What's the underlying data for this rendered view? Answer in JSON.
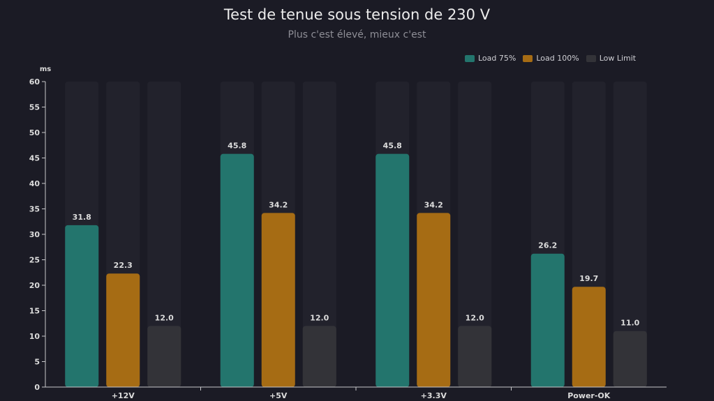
{
  "chart_data": {
    "type": "bar",
    "title": "Test de tenue sous tension de 230 V",
    "subtitle": "Plus c'est élevé, mieux c'est",
    "xlabel": "",
    "ylabel": "ms",
    "ylim": [
      0,
      60
    ],
    "yticks": [
      0,
      5,
      10,
      15,
      20,
      25,
      30,
      35,
      40,
      45,
      50,
      55,
      60
    ],
    "categories": [
      "+12V",
      "+5V",
      "+3.3V",
      "Power-OK"
    ],
    "series": [
      {
        "name": "Load 75%",
        "color": "#23756d",
        "values": [
          31.8,
          45.8,
          45.8,
          26.2
        ],
        "labels": [
          "31.8",
          "45.8",
          "45.8",
          "26.2"
        ]
      },
      {
        "name": "Load 100%",
        "color": "#a66c14",
        "values": [
          22.3,
          34.2,
          34.2,
          19.7
        ],
        "labels": [
          "22.3",
          "34.2",
          "34.2",
          "19.7"
        ]
      },
      {
        "name": "Low Limit",
        "color": "#333338",
        "values": [
          12.0,
          12.0,
          12.0,
          11.0
        ],
        "labels": [
          "12.0",
          "12.0",
          "12.0",
          "11.0"
        ]
      }
    ],
    "legend_position": "top-right",
    "grid": false
  },
  "colors": {
    "background": "#1b1b25",
    "track": "#22222c",
    "axis": "#c8c8cc"
  }
}
